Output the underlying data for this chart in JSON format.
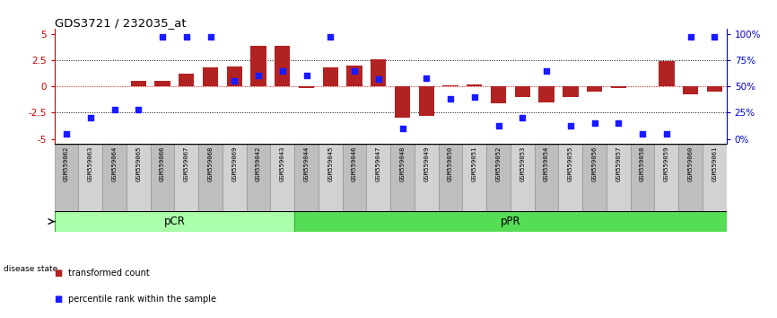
{
  "title": "GDS3721 / 232035_at",
  "samples": [
    "GSM559062",
    "GSM559063",
    "GSM559064",
    "GSM559065",
    "GSM559066",
    "GSM559067",
    "GSM559068",
    "GSM559069",
    "GSM559042",
    "GSM559043",
    "GSM559044",
    "GSM559045",
    "GSM559046",
    "GSM559047",
    "GSM559048",
    "GSM559049",
    "GSM559050",
    "GSM559051",
    "GSM559052",
    "GSM559053",
    "GSM559054",
    "GSM559055",
    "GSM559056",
    "GSM559057",
    "GSM559058",
    "GSM559059",
    "GSM559060",
    "GSM559061"
  ],
  "transformed_count": [
    0.0,
    0.0,
    0.0,
    0.5,
    0.5,
    1.2,
    1.8,
    1.9,
    3.85,
    3.85,
    -0.15,
    1.8,
    2.0,
    2.55,
    -3.0,
    -2.85,
    0.1,
    0.15,
    -1.6,
    -1.0,
    -1.5,
    -1.0,
    -0.5,
    -0.2,
    0.0,
    2.4,
    -0.8,
    -0.5
  ],
  "percentile_rank": [
    5,
    20,
    28,
    28,
    97,
    97,
    97,
    55,
    60,
    65,
    60,
    97,
    65,
    57,
    10,
    58,
    38,
    40,
    12,
    20,
    65,
    12,
    15,
    15,
    5,
    5,
    97,
    97
  ],
  "pCR_count": 10,
  "bar_color": "#b22222",
  "dot_color": "#1a1aff",
  "pCR_color": "#aaffaa",
  "pPR_color": "#55dd55",
  "label_color_left": "#cc0000",
  "label_color_right": "#0000cc",
  "box_color_odd": "#bebebe",
  "box_color_even": "#d2d2d2",
  "ylim": [
    -5.5,
    5.5
  ],
  "yticks_left": [
    -5,
    -2.5,
    0,
    2.5,
    5
  ],
  "ytick_labels_left": [
    "-5",
    "-2.5",
    "0",
    "2.5",
    "5"
  ],
  "ytick_labels_right": [
    "0%",
    "25%",
    "50%",
    "75%",
    "100%"
  ]
}
